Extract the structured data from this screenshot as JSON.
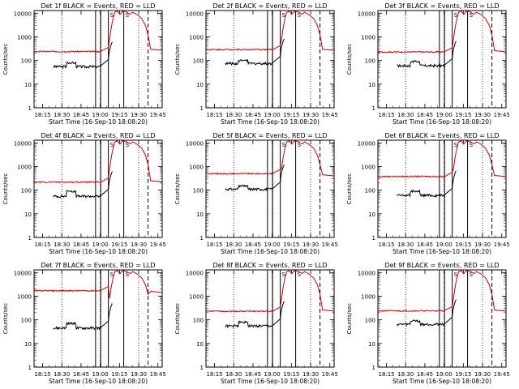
{
  "chart_data": {
    "type": "line",
    "common": {
      "xlabel": "Start Time (16-Sep-10 18:08:20)",
      "ylabel": "Counts/sec",
      "x_ticks": [
        "18:15",
        "18:30",
        "18:45",
        "19:00",
        "19:15",
        "19:30",
        "19:45"
      ],
      "y_ticks": [
        "1",
        "10",
        "100",
        "1000",
        "10000"
      ],
      "xlim_minutes_from_start": [
        0,
        100
      ],
      "ylim": [
        1,
        13000
      ],
      "y_scale": "log",
      "series": [
        {
          "name": "Events",
          "color": "#000000"
        },
        {
          "name": "LLD",
          "color": "#cc0000"
        }
      ],
      "annotation_markers": [
        "S",
        "S",
        "S",
        "S",
        "S",
        "S",
        "S",
        "S",
        "S",
        "S",
        "S",
        "S",
        "S",
        "S",
        "S",
        "S",
        "S",
        "S"
      ]
    },
    "panels": [
      {
        "title": "Det 1f BLACK = Events, RED = LLD",
        "events_base": 55,
        "events_bump": 80,
        "lld_base": 240,
        "lld_after": 300
      },
      {
        "title": "Det 2f BLACK = Events, RED = LLD",
        "events_base": 75,
        "events_bump": 100,
        "lld_base": 290,
        "lld_after": 300
      },
      {
        "title": "Det 3f BLACK = Events, RED = LLD",
        "events_base": 60,
        "events_bump": 90,
        "lld_base": 230,
        "lld_after": 260
      },
      {
        "title": "Det 4f BLACK = Events, RED = LLD",
        "events_base": 55,
        "events_bump": 90,
        "lld_base": 220,
        "lld_after": 250
      },
      {
        "title": "Det 5f BLACK = Events, RED = LLD",
        "events_base": 110,
        "events_bump": 150,
        "lld_base": 500,
        "lld_after": 450
      },
      {
        "title": "Det 6f BLACK = Events, RED = LLD",
        "events_base": 60,
        "events_bump": 90,
        "lld_base": 380,
        "lld_after": 420
      },
      {
        "title": "Det 7f BLACK = Events, RED = LLD",
        "events_base": 45,
        "events_bump": 70,
        "lld_base": 1700,
        "lld_after": 1600
      },
      {
        "title": "Det 8f BLACK = Events, RED = LLD",
        "events_base": 55,
        "events_bump": 80,
        "lld_base": 230,
        "lld_after": 260
      },
      {
        "title": "Det 9f BLACK = Events, RED = LLD",
        "events_base": 65,
        "events_bump": 90,
        "lld_base": 240,
        "lld_after": 260
      }
    ]
  }
}
